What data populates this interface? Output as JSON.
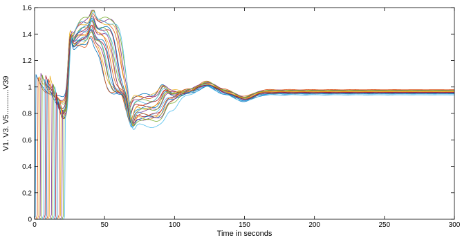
{
  "chart_data": {
    "type": "line",
    "title": "",
    "xlabel": "Time in seconds",
    "ylabel": "V1. V3. V5............V39",
    "xlim": [
      0,
      300
    ],
    "ylim": [
      0,
      1.6
    ],
    "xticks": [
      0,
      50,
      100,
      150,
      200,
      250,
      300
    ],
    "yticks": [
      0,
      0.2,
      0.4,
      0.6,
      0.8,
      1,
      1.2,
      1.4,
      1.6
    ],
    "xtick_labels": [
      "0",
      "50",
      "100",
      "150",
      "200",
      "250",
      "300"
    ],
    "ytick_labels": [
      "0",
      "0.2",
      "0.4",
      "0.6",
      "0.8",
      "1",
      "1.2",
      "1.4",
      "1.6"
    ],
    "grid": false,
    "box": true,
    "series_count": 20,
    "series_colors": [
      "#0072BD",
      "#D95319",
      "#EDB120",
      "#7E2F8E",
      "#77AC30",
      "#4DBEEE",
      "#A2142F"
    ],
    "envelope_samples": [
      {
        "x": 2,
        "y_min": 0.0,
        "y_max": 1.1
      },
      {
        "x": 10,
        "y_min": 0.0,
        "y_max": 1.02
      },
      {
        "x": 22,
        "y_min": 0.64,
        "y_max": 1.1
      },
      {
        "x": 25,
        "y_min": 0.9,
        "y_max": 1.58
      },
      {
        "x": 40,
        "y_min": 1.25,
        "y_max": 1.5
      },
      {
        "x": 55,
        "y_min": 0.95,
        "y_max": 1.4
      },
      {
        "x": 70,
        "y_min": 0.65,
        "y_max": 1.02
      },
      {
        "x": 90,
        "y_min": 0.72,
        "y_max": 1.0
      },
      {
        "x": 125,
        "y_min": 0.97,
        "y_max": 1.06
      },
      {
        "x": 150,
        "y_min": 0.86,
        "y_max": 0.98
      },
      {
        "x": 200,
        "y_min": 0.92,
        "y_max": 0.96
      },
      {
        "x": 300,
        "y_min": 0.93,
        "y_max": 0.98
      }
    ]
  }
}
